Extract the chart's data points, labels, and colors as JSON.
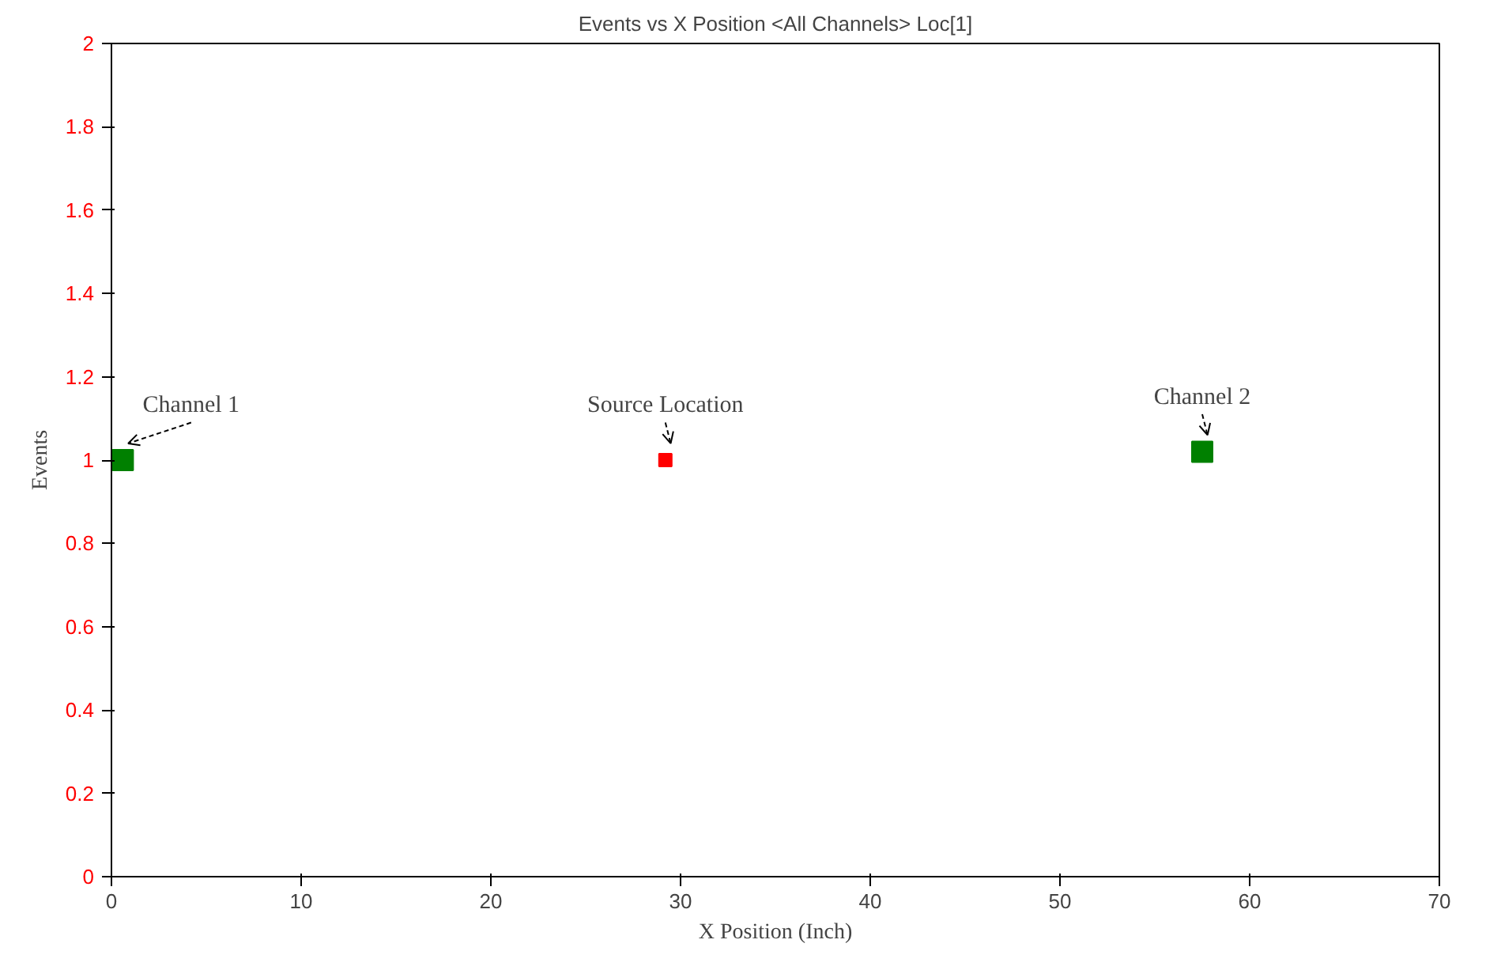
{
  "chart_data": {
    "type": "scatter",
    "title": "Events vs X Position <All Channels> Loc[1]",
    "xlabel": "X Position (Inch)",
    "ylabel": "Events",
    "series": [
      {
        "color": "#008000",
        "x": [
          0.6,
          57.5
        ],
        "values": [
          1,
          1.02
        ]
      },
      {
        "color": "#ff0000",
        "x": [
          29.2
        ],
        "values": [
          1
        ]
      }
    ],
    "annotations": [
      {
        "text": "Channel 1",
        "x": 0.6,
        "y": 1
      },
      {
        "text": "Source Location",
        "x": 29.2,
        "y": 1
      },
      {
        "text": "Channel 2",
        "x": 57.5,
        "y": 1.02
      }
    ],
    "xlim": [
      0,
      70
    ],
    "xticks": [
      0,
      10,
      20,
      30,
      40,
      50,
      60,
      70
    ],
    "ylim": [
      0,
      2
    ],
    "yticks": [
      0,
      0.2,
      0.4,
      0.6,
      0.8,
      1,
      1.2,
      1.4,
      1.6,
      1.8,
      2
    ],
    "marker": "square",
    "grid": false
  }
}
